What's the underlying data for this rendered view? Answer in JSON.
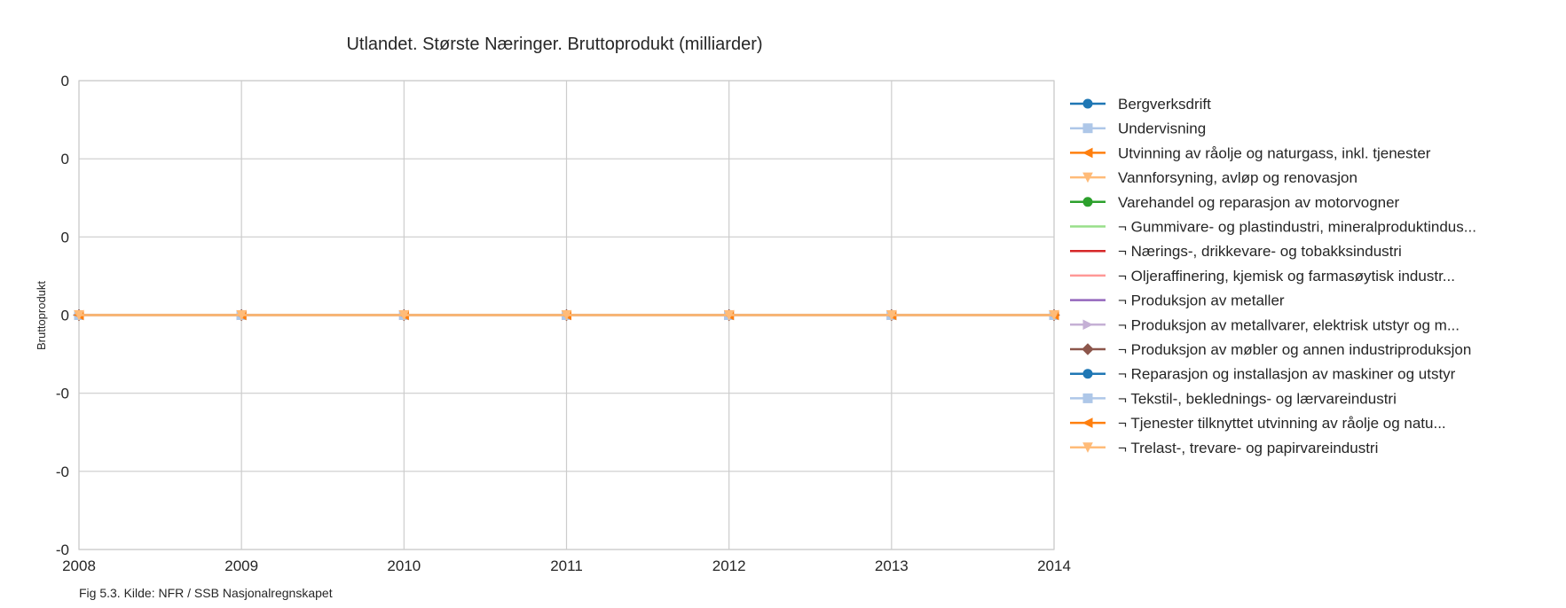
{
  "chart_data": {
    "type": "line",
    "title": "Utlandet. Største Næringer. Bruttoprodukt (milliarder)",
    "xlabel": "",
    "ylabel": "Bruttoprodukt",
    "x": [
      2008,
      2009,
      2010,
      2011,
      2012,
      2013,
      2014
    ],
    "x_tick_labels": [
      "2008",
      "2009",
      "2010",
      "2011",
      "2012",
      "2013",
      "2014"
    ],
    "y_tick_labels": [
      "0",
      "0",
      "0",
      "0",
      "-0",
      "-0",
      "-0"
    ],
    "ylim": [
      -0.06,
      0.06
    ],
    "xlim": [
      2008,
      2014
    ],
    "grid": true,
    "legend_position": "right",
    "series": [
      {
        "name": "Bergverksdrift",
        "color": "#1f77b4",
        "marker": "circle",
        "values": [
          0,
          0,
          0,
          0,
          0,
          0,
          0
        ]
      },
      {
        "name": "Undervisning",
        "color": "#aec7e8",
        "marker": "square",
        "values": [
          0,
          0,
          0,
          0,
          0,
          0,
          0
        ]
      },
      {
        "name": "Utvinning av råolje og naturgass, inkl. tjenester",
        "color": "#ff7f0e",
        "marker": "triangle-left",
        "values": [
          0,
          0,
          0,
          0,
          0,
          0,
          0
        ]
      },
      {
        "name": "Vannforsyning, avløp og renovasjon",
        "color": "#ffbb78",
        "marker": "triangle-down",
        "values": [
          0,
          0,
          0,
          0,
          0,
          0,
          0
        ]
      },
      {
        "name": "Varehandel og reparasjon av motorvogner",
        "color": "#2ca02c",
        "marker": "circle",
        "values": [
          0,
          0,
          0,
          0,
          0,
          0,
          0
        ]
      },
      {
        "name": "¬ Gummivare- og plastindustri, mineralproduktindus...",
        "color": "#98df8a",
        "marker": "none",
        "values": [
          0,
          0,
          0,
          0,
          0,
          0,
          0
        ]
      },
      {
        "name": "¬ Nærings-, drikkevare- og tobakksindustri",
        "color": "#d62728",
        "marker": "none",
        "values": [
          0,
          0,
          0,
          0,
          0,
          0,
          0
        ]
      },
      {
        "name": "¬ Oljeraffinering, kjemisk og farmasøytisk industr...",
        "color": "#ff9896",
        "marker": "none",
        "values": [
          0,
          0,
          0,
          0,
          0,
          0,
          0
        ]
      },
      {
        "name": "¬ Produksjon av metaller",
        "color": "#9467bd",
        "marker": "none",
        "values": [
          0,
          0,
          0,
          0,
          0,
          0,
          0
        ]
      },
      {
        "name": "¬ Produksjon av metallvarer, elektrisk utstyr og m...",
        "color": "#c5b0d5",
        "marker": "triangle-right",
        "values": [
          0,
          0,
          0,
          0,
          0,
          0,
          0
        ]
      },
      {
        "name": "¬ Produksjon av møbler og annen industriproduksjon",
        "color": "#8c564b",
        "marker": "diamond",
        "values": [
          0,
          0,
          0,
          0,
          0,
          0,
          0
        ]
      },
      {
        "name": "¬ Reparasjon og installasjon av maskiner og utstyr",
        "color": "#1f77b4",
        "marker": "circle",
        "values": [
          0,
          0,
          0,
          0,
          0,
          0,
          0
        ]
      },
      {
        "name": "¬ Tekstil-, beklednings- og lærvareindustri",
        "color": "#aec7e8",
        "marker": "square",
        "values": [
          0,
          0,
          0,
          0,
          0,
          0,
          0
        ]
      },
      {
        "name": "¬ Tjenester tilknyttet utvinning av råolje og natu...",
        "color": "#ff7f0e",
        "marker": "triangle-left",
        "values": [
          0,
          0,
          0,
          0,
          0,
          0,
          0
        ]
      },
      {
        "name": "¬ Trelast-, trevare- og papirvareindustri",
        "color": "#ffbb78",
        "marker": "triangle-down",
        "values": [
          0,
          0,
          0,
          0,
          0,
          0,
          0
        ]
      }
    ]
  },
  "caption": "Fig 5.3. Kilde: NFR / SSB Nasjonalregnskapet"
}
